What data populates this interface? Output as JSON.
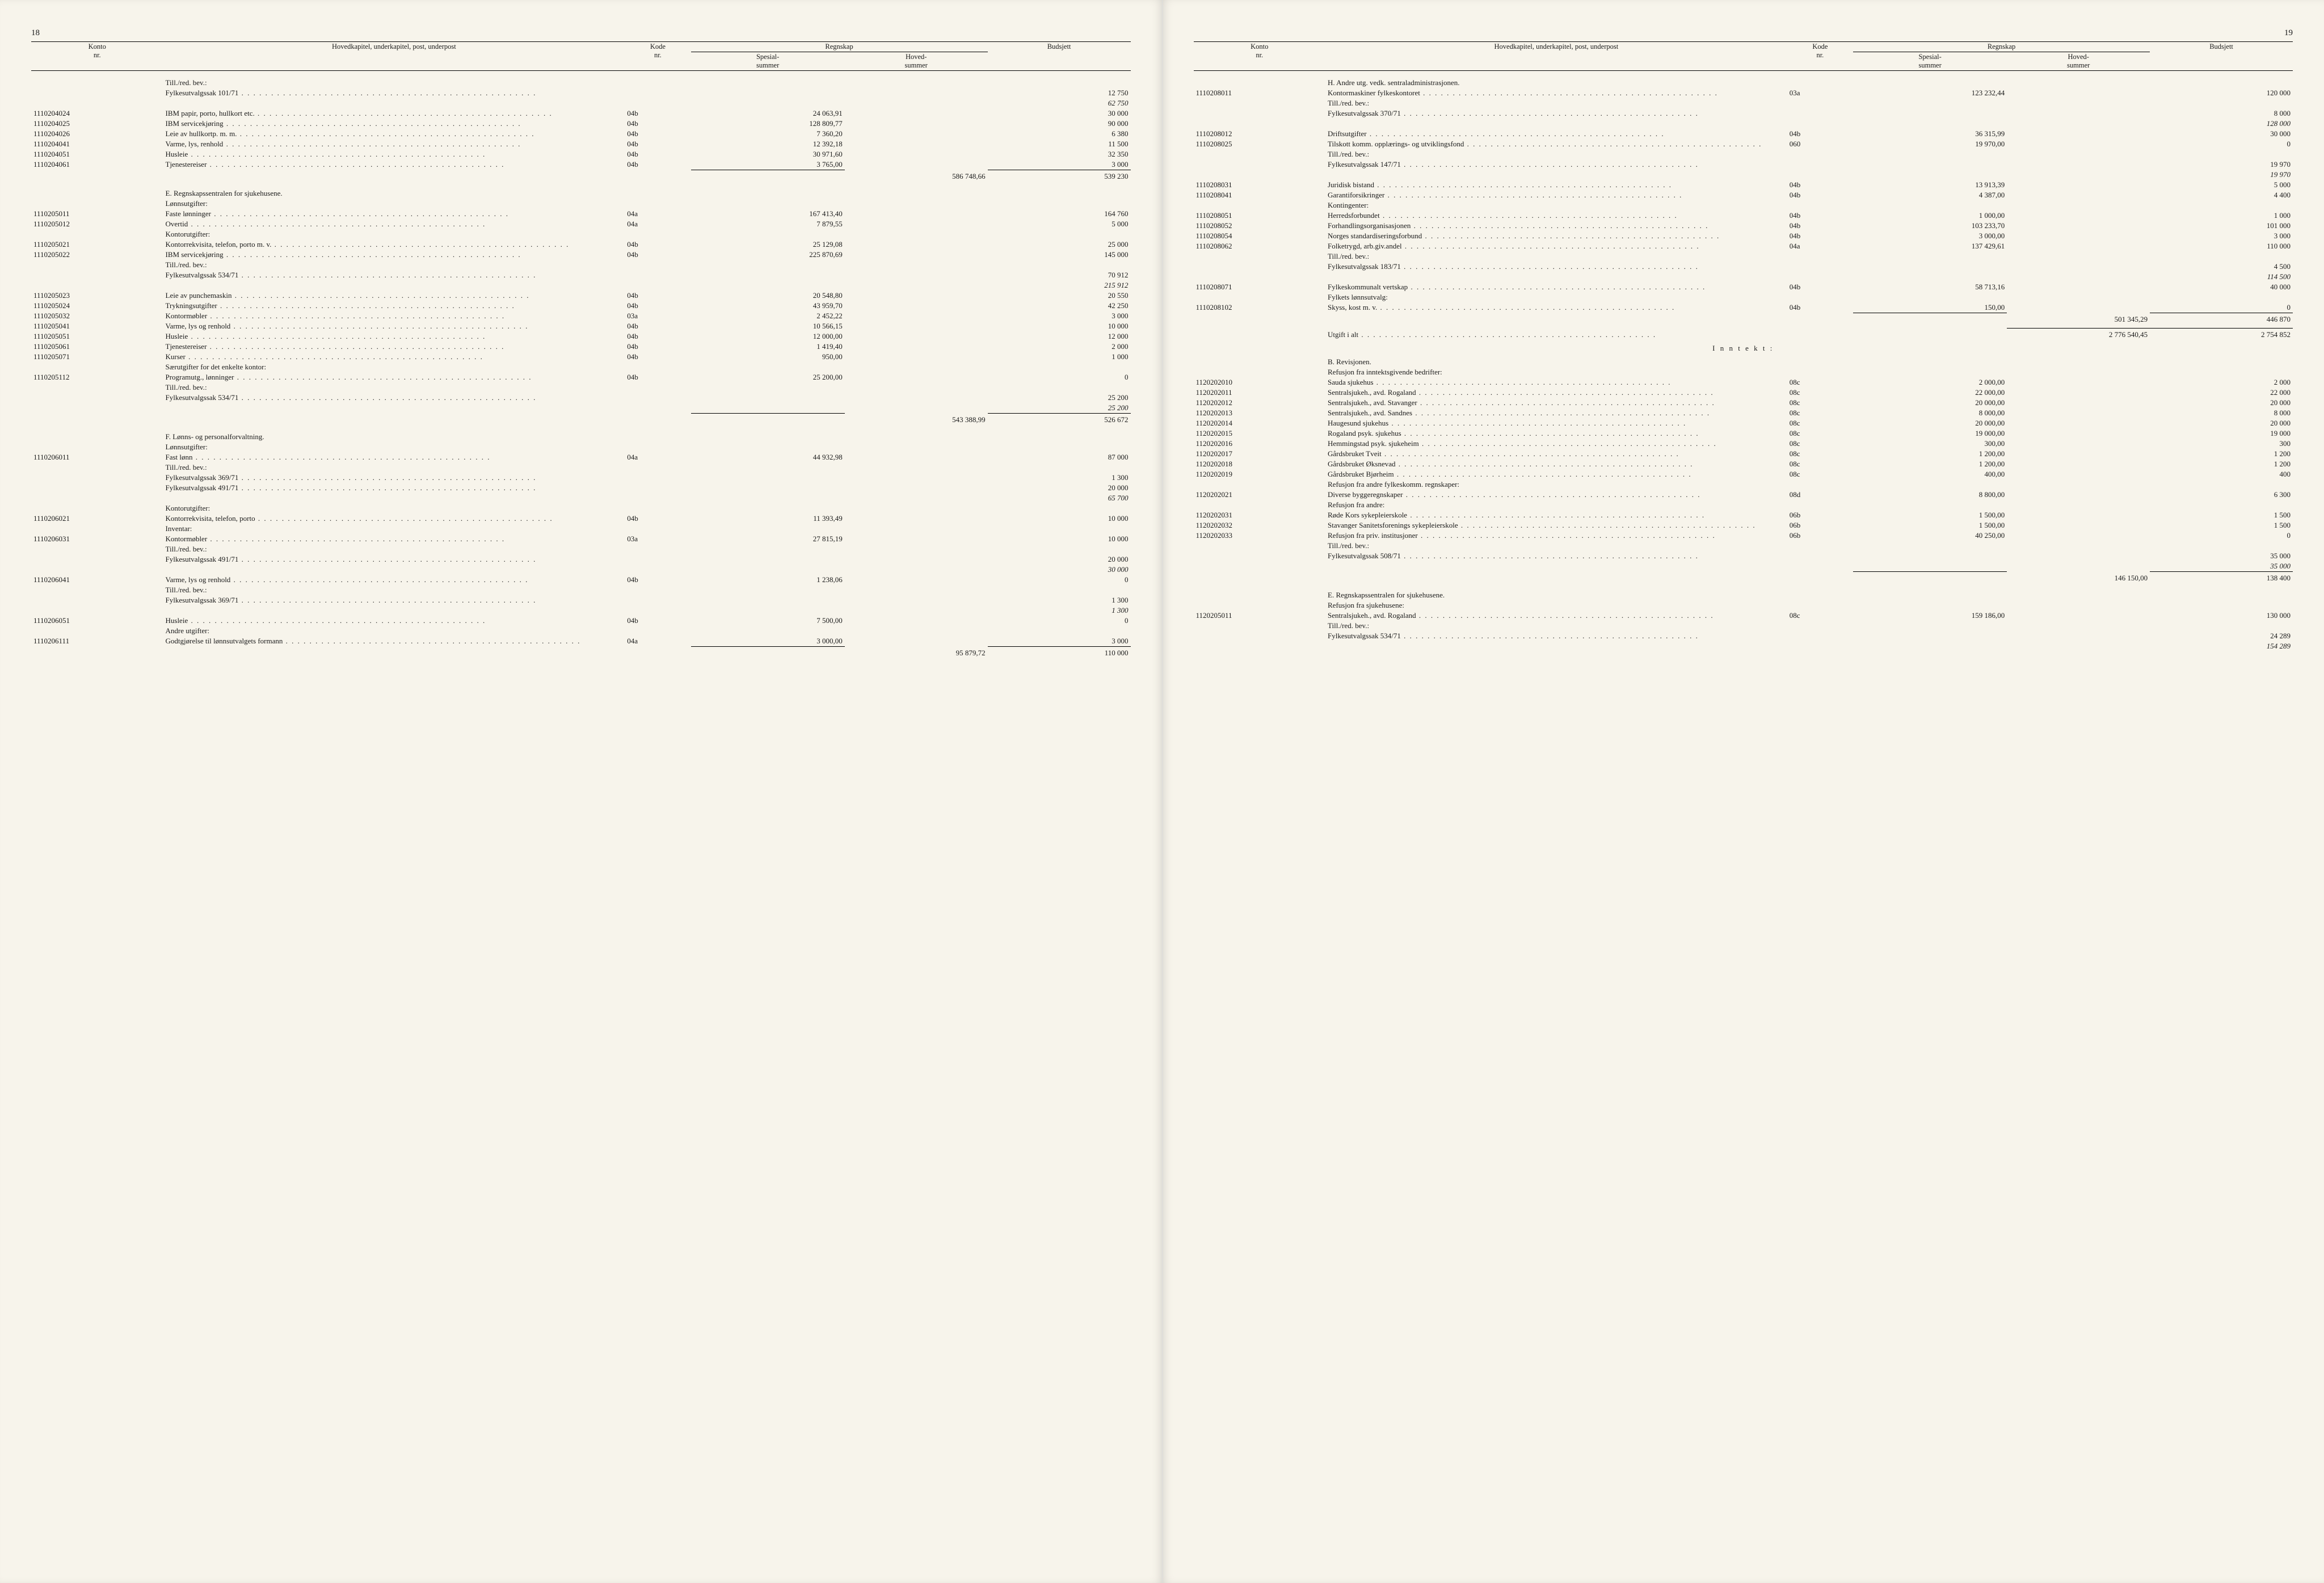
{
  "pages": {
    "left_num": "18",
    "right_num": "19"
  },
  "header": {
    "konto": "Konto\nnr.",
    "hovedkapitel": "Hovedkapitel, underkapitel, post, underpost",
    "kode": "Kode\nnr.",
    "regnskap": "Regnskap",
    "spesial": "Spesial-\nsummer",
    "hoved": "Hoved-\nsummer",
    "budsjett": "Budsjett"
  },
  "left_rows": [
    {
      "type": "text",
      "desc": "Till./red. bev.:"
    },
    {
      "type": "line",
      "desc": "Fylkesutvalgssak 101/71",
      "bud": "12 750"
    },
    {
      "type": "ital",
      "bud": "62 750"
    },
    {
      "type": "line",
      "konto": "1110204024",
      "desc": "IBM papir, porto, hullkort etc.",
      "kode": "04b",
      "spes": "24 063,91",
      "bud": "30 000"
    },
    {
      "type": "line",
      "konto": "1110204025",
      "desc": "IBM servicekjøring",
      "kode": "04b",
      "spes": "128 809,77",
      "bud": "90 000"
    },
    {
      "type": "line",
      "konto": "1110204026",
      "desc": "Leie av hullkortp. m. m.",
      "kode": "04b",
      "spes": "7 360,20",
      "bud": "6 380"
    },
    {
      "type": "line",
      "konto": "1110204041",
      "desc": "Varme, lys, renhold",
      "kode": "04b",
      "spes": "12 392,18",
      "bud": "11 500"
    },
    {
      "type": "line",
      "konto": "1110204051",
      "desc": "Husleie",
      "kode": "04b",
      "spes": "30 971,60",
      "bud": "32 350"
    },
    {
      "type": "line",
      "konto": "1110204061",
      "desc": "Tjenestereiser",
      "kode": "04b",
      "spes": "3 765,00",
      "bud": "3 000"
    },
    {
      "type": "rule"
    },
    {
      "type": "sum",
      "hoved": "586 748,66",
      "bud": "539 230"
    },
    {
      "type": "spacer"
    },
    {
      "type": "head",
      "desc": "E. Regnskapssentralen for sjukehusene."
    },
    {
      "type": "text",
      "desc": "Lønnsutgifter:"
    },
    {
      "type": "line",
      "konto": "1110205011",
      "desc": "Faste lønninger",
      "kode": "04a",
      "spes": "167 413,40",
      "bud": "164 760"
    },
    {
      "type": "line",
      "konto": "1110205012",
      "desc": "Overtid",
      "kode": "04a",
      "spes": "7 879,55",
      "bud": "5 000"
    },
    {
      "type": "text",
      "desc": "Kontorutgifter:"
    },
    {
      "type": "line",
      "konto": "1110205021",
      "desc": "Kontorrekvisita, telefon, porto m. v.",
      "kode": "04b",
      "spes": "25 129,08",
      "bud": "25 000"
    },
    {
      "type": "line",
      "konto": "1110205022",
      "desc": "IBM servicekjøring",
      "kode": "04b",
      "spes": "225 870,69",
      "bud": "145 000"
    },
    {
      "type": "text",
      "desc": "Till./red. bev.:"
    },
    {
      "type": "line",
      "desc": "Fylkesutvalgssak 534/71",
      "bud": "70 912"
    },
    {
      "type": "ital",
      "bud": "215 912"
    },
    {
      "type": "line",
      "konto": "1110205023",
      "desc": "Leie av punchemaskin",
      "kode": "04b",
      "spes": "20 548,80",
      "bud": "20 550"
    },
    {
      "type": "line",
      "konto": "1110205024",
      "desc": "Trykningsutgifter",
      "kode": "04b",
      "spes": "43 959,70",
      "bud": "42 250"
    },
    {
      "type": "line",
      "konto": "1110205032",
      "desc": "Kontormøbler",
      "kode": "03a",
      "spes": "2 452,22",
      "bud": "3 000"
    },
    {
      "type": "line",
      "konto": "1110205041",
      "desc": "Varme, lys og renhold",
      "kode": "04b",
      "spes": "10 566,15",
      "bud": "10 000"
    },
    {
      "type": "line",
      "konto": "1110205051",
      "desc": "Husleie",
      "kode": "04b",
      "spes": "12 000,00",
      "bud": "12 000"
    },
    {
      "type": "line",
      "konto": "1110205061",
      "desc": "Tjenestereiser",
      "kode": "04b",
      "spes": "1 419,40",
      "bud": "2 000"
    },
    {
      "type": "line",
      "konto": "1110205071",
      "desc": "Kurser",
      "kode": "04b",
      "spes": "950,00",
      "bud": "1 000"
    },
    {
      "type": "text",
      "desc": "Særutgifter for det enkelte kontor:"
    },
    {
      "type": "line",
      "konto": "1110205112",
      "desc": "Programutg., lønninger",
      "kode": "04b",
      "spes": "25 200,00",
      "bud": "0"
    },
    {
      "type": "text",
      "desc": "Till./red. bev.:"
    },
    {
      "type": "line",
      "desc": "Fylkesutvalgssak 534/71",
      "bud": "25 200"
    },
    {
      "type": "ital",
      "bud": "25 200"
    },
    {
      "type": "rule"
    },
    {
      "type": "sum",
      "hoved": "543 388,99",
      "bud": "526 672"
    },
    {
      "type": "spacer"
    },
    {
      "type": "head",
      "desc": "F. Lønns- og personalforvaltning."
    },
    {
      "type": "text",
      "desc": "Lønnsutgifter:"
    },
    {
      "type": "line",
      "konto": "1110206011",
      "desc": "Fast lønn",
      "kode": "04a",
      "spes": "44 932,98",
      "bud": "87 000"
    },
    {
      "type": "text",
      "desc": "Till./red. bev.:"
    },
    {
      "type": "line",
      "desc": "Fylkesutvalgssak 369/71",
      "bud": "1 300"
    },
    {
      "type": "line",
      "desc": "Fylkesutvalgssak 491/71",
      "bud": "20 000"
    },
    {
      "type": "ital",
      "bud": "65 700"
    },
    {
      "type": "text",
      "desc": "Kontorutgifter:"
    },
    {
      "type": "line",
      "konto": "1110206021",
      "desc": "Kontorrekvisita, telefon, porto",
      "kode": "04b",
      "spes": "11 393,49",
      "bud": "10 000"
    },
    {
      "type": "text",
      "desc": "Inventar:"
    },
    {
      "type": "line",
      "konto": "1110206031",
      "desc": "Kontormøbler",
      "kode": "03a",
      "spes": "27 815,19",
      "bud": "10 000"
    },
    {
      "type": "text",
      "desc": "Till./red. bev.:"
    },
    {
      "type": "line",
      "desc": "Fylkesutvalgssak 491/71",
      "bud": "20 000"
    },
    {
      "type": "ital",
      "bud": "30 000"
    },
    {
      "type": "line",
      "konto": "1110206041",
      "desc": "Varme, lys og renhold",
      "kode": "04b",
      "spes": "1 238,06",
      "bud": "0"
    },
    {
      "type": "text",
      "desc": "Till./red. bev.:"
    },
    {
      "type": "line",
      "desc": "Fylkesutvalgssak 369/71",
      "bud": "1 300"
    },
    {
      "type": "ital",
      "bud": "1 300"
    },
    {
      "type": "line",
      "konto": "1110206051",
      "desc": "Husleie",
      "kode": "04b",
      "spes": "7 500,00",
      "bud": "0"
    },
    {
      "type": "text",
      "desc": "Andre utgifter:"
    },
    {
      "type": "line",
      "konto": "1110206111",
      "desc": "Godtgjørelse til lønnsutvalgets formann",
      "kode": "04a",
      "spes": "3 000,00",
      "bud": "3 000"
    },
    {
      "type": "rule"
    },
    {
      "type": "sum",
      "hoved": "95 879,72",
      "bud": "110 000"
    }
  ],
  "right_rows": [
    {
      "type": "head",
      "desc": "H. Andre utg. vedk. sentraladministrasjonen."
    },
    {
      "type": "line",
      "konto": "1110208011",
      "desc": "Kontormaskiner fylkeskontoret",
      "kode": "03a",
      "spes": "123 232,44",
      "bud": "120 000"
    },
    {
      "type": "text",
      "desc": "Till./red. bev.:"
    },
    {
      "type": "line",
      "desc": "Fylkesutvalgssak 370/71",
      "bud": "8 000"
    },
    {
      "type": "ital",
      "bud": "128 000"
    },
    {
      "type": "line",
      "konto": "1110208012",
      "desc": "Driftsutgifter",
      "kode": "04b",
      "spes": "36 315,99",
      "bud": "30 000"
    },
    {
      "type": "line",
      "konto": "1110208025",
      "desc": "Tilskott komm. opplærings- og utviklingsfond",
      "kode": "060",
      "spes": "19 970,00",
      "bud": "0"
    },
    {
      "type": "text",
      "desc": "Till./red. bev.:"
    },
    {
      "type": "line",
      "desc": "Fylkesutvalgssak 147/71",
      "bud": "19 970"
    },
    {
      "type": "ital",
      "bud": "19 970"
    },
    {
      "type": "line",
      "konto": "1110208031",
      "desc": "Juridisk bistand",
      "kode": "04b",
      "spes": "13 913,39",
      "bud": "5 000"
    },
    {
      "type": "line",
      "konto": "1110208041",
      "desc": "Garantiforsikringer",
      "kode": "04b",
      "spes": "4 387,00",
      "bud": "4 400"
    },
    {
      "type": "text",
      "desc": "Kontingenter:"
    },
    {
      "type": "line",
      "konto": "1110208051",
      "desc": "Herredsforbundet",
      "kode": "04b",
      "spes": "1 000,00",
      "bud": "1 000"
    },
    {
      "type": "line",
      "konto": "1110208052",
      "desc": "Forhandlingsorganisasjonen",
      "kode": "04b",
      "spes": "103 233,70",
      "bud": "101 000"
    },
    {
      "type": "line",
      "konto": "1110208054",
      "desc": "Norges standardiseringsforbund",
      "kode": "04b",
      "spes": "3 000,00",
      "bud": "3 000"
    },
    {
      "type": "line",
      "konto": "1110208062",
      "desc": "Folketrygd, arb.giv.andel",
      "kode": "04a",
      "spes": "137 429,61",
      "bud": "110 000"
    },
    {
      "type": "text",
      "desc": "Till./red. bev.:"
    },
    {
      "type": "line",
      "desc": "Fylkesutvalgssak 183/71",
      "bud": "4 500"
    },
    {
      "type": "ital",
      "bud": "114 500"
    },
    {
      "type": "line",
      "konto": "1110208071",
      "desc": "Fylkeskommunalt vertskap",
      "kode": "04b",
      "spes": "58 713,16",
      "bud": "40 000"
    },
    {
      "type": "text",
      "desc": "Fylkets lønnsutvalg:"
    },
    {
      "type": "line",
      "konto": "1110208102",
      "desc": "Skyss, kost m. v.",
      "kode": "04b",
      "spes": "150,00",
      "bud": "0"
    },
    {
      "type": "rule"
    },
    {
      "type": "sum",
      "hoved": "501 345,29",
      "bud": "446 870"
    },
    {
      "type": "small-spacer"
    },
    {
      "type": "rule-hb"
    },
    {
      "type": "grand",
      "desc": "Utgift i alt",
      "hoved": "2 776 540,45",
      "bud": "2 754 852"
    },
    {
      "type": "small-spacer"
    },
    {
      "type": "center",
      "desc": "I n n t e k t :"
    },
    {
      "type": "small-spacer"
    },
    {
      "type": "head",
      "desc": "B. Revisjonen."
    },
    {
      "type": "text",
      "desc": "Refusjon fra inntektsgivende bedrifter:"
    },
    {
      "type": "line",
      "konto": "1120202010",
      "desc": "Sauda sjukehus",
      "kode": "08c",
      "spes": "2 000,00",
      "bud": "2 000"
    },
    {
      "type": "line",
      "konto": "1120202011",
      "desc": "Sentralsjukeh., avd. Rogaland",
      "kode": "08c",
      "spes": "22 000,00",
      "bud": "22 000"
    },
    {
      "type": "line",
      "konto": "1120202012",
      "desc": "Sentralsjukeh., avd. Stavanger",
      "kode": "08c",
      "spes": "20 000,00",
      "bud": "20 000"
    },
    {
      "type": "line",
      "konto": "1120202013",
      "desc": "Sentralsjukeh., avd. Sandnes",
      "kode": "08c",
      "spes": "8 000,00",
      "bud": "8 000"
    },
    {
      "type": "line",
      "konto": "1120202014",
      "desc": "Haugesund sjukehus",
      "kode": "08c",
      "spes": "20 000,00",
      "bud": "20 000"
    },
    {
      "type": "line",
      "konto": "1120202015",
      "desc": "Rogaland psyk. sjukehus",
      "kode": "08c",
      "spes": "19 000,00",
      "bud": "19 000"
    },
    {
      "type": "line",
      "konto": "1120202016",
      "desc": "Hemmingstad psyk. sjukeheim",
      "kode": "08c",
      "spes": "300,00",
      "bud": "300"
    },
    {
      "type": "line",
      "konto": "1120202017",
      "desc": "Gårdsbruket Tveit",
      "kode": "08c",
      "spes": "1 200,00",
      "bud": "1 200"
    },
    {
      "type": "line",
      "konto": "1120202018",
      "desc": "Gårdsbruket Øksnevad",
      "kode": "08c",
      "spes": "1 200,00",
      "bud": "1 200"
    },
    {
      "type": "line",
      "konto": "1120202019",
      "desc": "Gårdsbruket Bjørheim",
      "kode": "08c",
      "spes": "400,00",
      "bud": "400"
    },
    {
      "type": "text",
      "desc": "Refusjon fra andre fylkeskomm. regnskaper:"
    },
    {
      "type": "line",
      "konto": "1120202021",
      "desc": "Diverse byggeregnskaper",
      "kode": "08d",
      "spes": "8 800,00",
      "bud": "6 300"
    },
    {
      "type": "text",
      "desc": "Refusjon fra andre:"
    },
    {
      "type": "line",
      "konto": "1120202031",
      "desc": "Røde Kors sykepleierskole",
      "kode": "06b",
      "spes": "1 500,00",
      "bud": "1 500"
    },
    {
      "type": "line",
      "konto": "1120202032",
      "desc": "Stavanger Sanitetsforenings sykepleierskole",
      "kode": "06b",
      "spes": "1 500,00",
      "bud": "1 500"
    },
    {
      "type": "line",
      "konto": "1120202033",
      "desc": "Refusjon fra priv. institusjoner",
      "kode": "06b",
      "spes": "40 250,00",
      "bud": "0"
    },
    {
      "type": "text",
      "desc": "Till./red. bev.:"
    },
    {
      "type": "line",
      "desc": "Fylkesutvalgssak 508/71",
      "bud": "35 000"
    },
    {
      "type": "ital",
      "bud": "35 000"
    },
    {
      "type": "rule"
    },
    {
      "type": "sum",
      "hoved": "146 150,00",
      "bud": "138 400"
    },
    {
      "type": "spacer"
    },
    {
      "type": "head",
      "desc": "E. Regnskapssentralen for sjukehusene."
    },
    {
      "type": "text",
      "desc": "Refusjon fra sjukehusene:"
    },
    {
      "type": "line",
      "konto": "1120205011",
      "desc": "Sentralsjukeh., avd. Rogaland",
      "kode": "08c",
      "spes": "159 186,00",
      "bud": "130 000"
    },
    {
      "type": "text",
      "desc": "Till./red. bev.:"
    },
    {
      "type": "line",
      "desc": "Fylkesutvalgssak 534/71",
      "bud": "24 289"
    },
    {
      "type": "ital",
      "bud": "154 289"
    }
  ]
}
